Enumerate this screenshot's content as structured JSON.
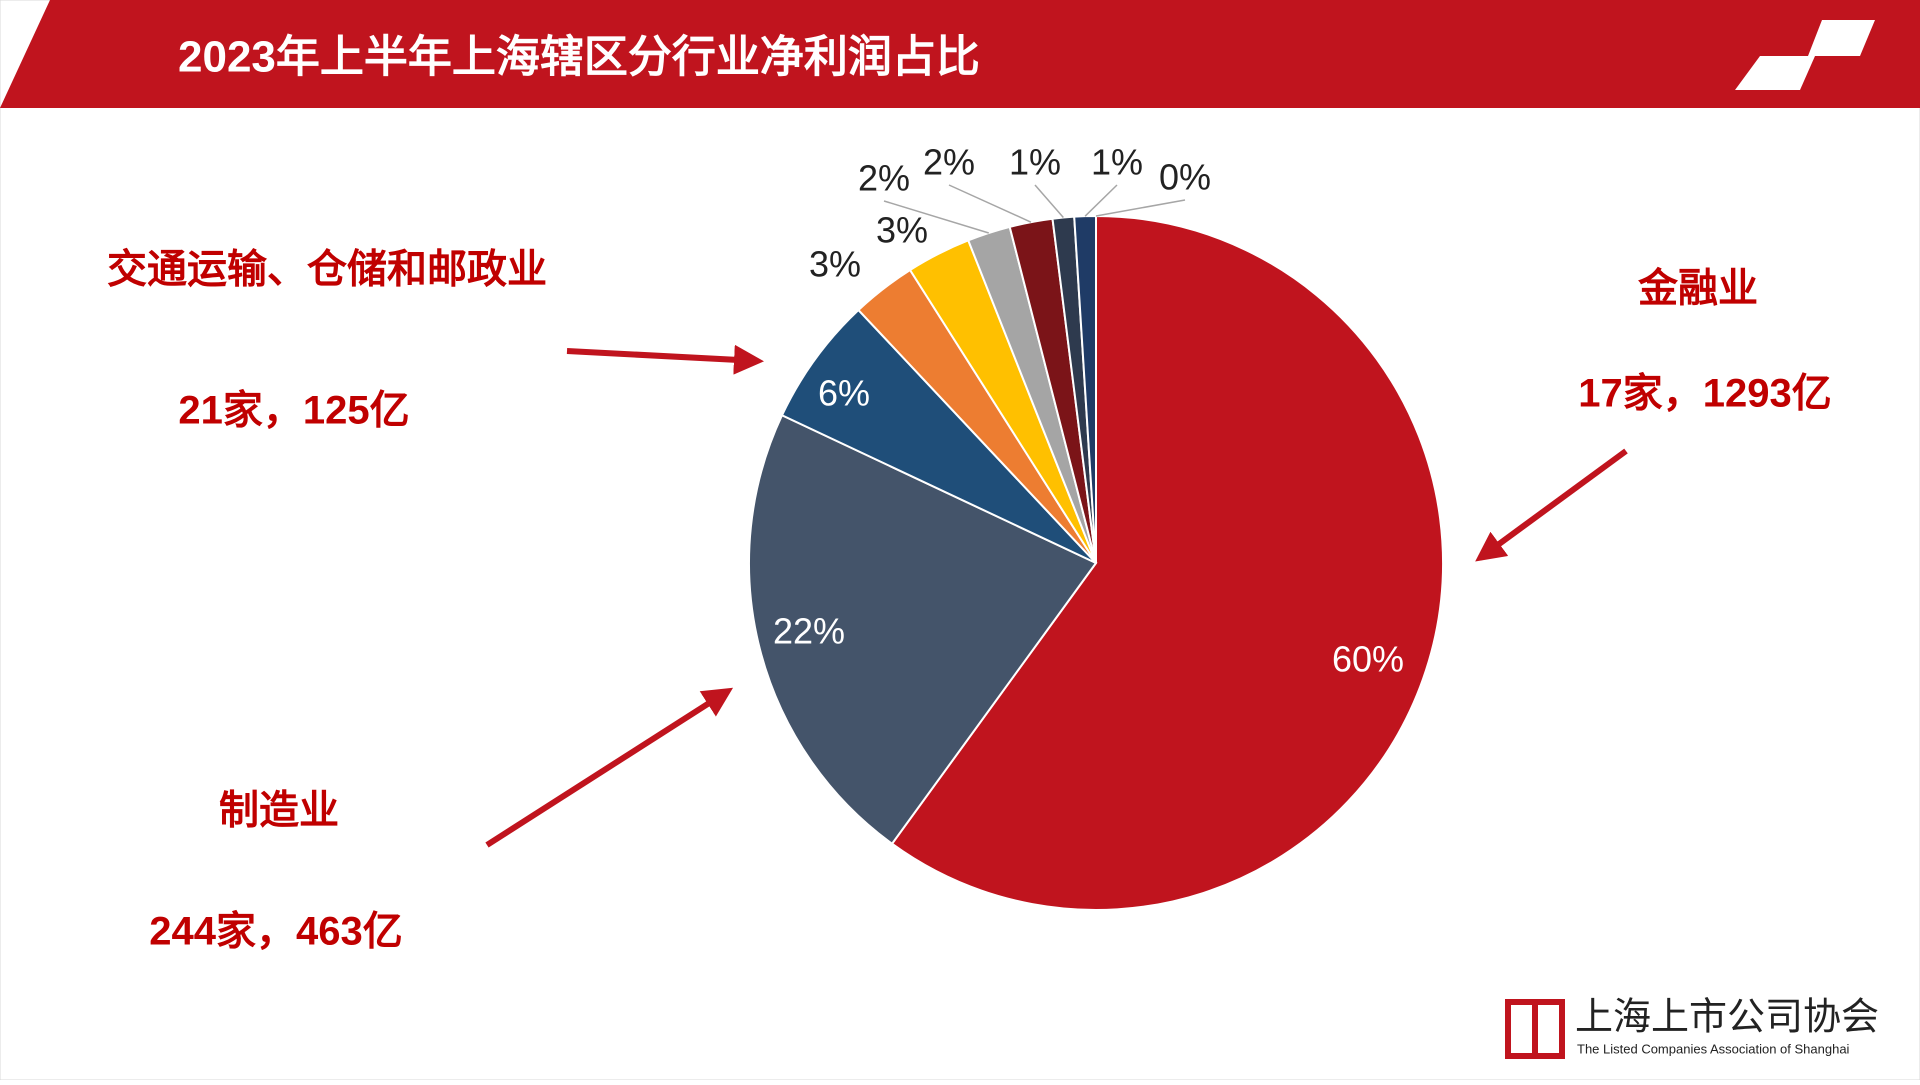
{
  "chart_data": {
    "type": "pie",
    "title": "2023年上半年上海辖区分行业净利润占比",
    "values": [
      60,
      22,
      6,
      3,
      3,
      2,
      2,
      1,
      1,
      0
    ],
    "value_labels": [
      "60%",
      "22%",
      "6%",
      "3%",
      "3%",
      "2%",
      "2%",
      "1%",
      "1%",
      "0%"
    ],
    "colors": [
      "#c0141e",
      "#44546a",
      "#1f4e79",
      "#ed7d31",
      "#ffc000",
      "#a5a5a5",
      "#7b1418",
      "#2e3a4e",
      "#1f3b66",
      "#c55a11"
    ],
    "annotations": [
      {
        "name": "交通运输、仓储和邮政业",
        "detail": "21家，125亿"
      },
      {
        "name": "金融业",
        "detail": "17家，1293亿"
      },
      {
        "name": "制造业",
        "detail": "244家，463亿"
      }
    ]
  },
  "logo": {
    "name": "上海上市公司协会",
    "english": "The Listed Companies Association of Shanghai"
  }
}
